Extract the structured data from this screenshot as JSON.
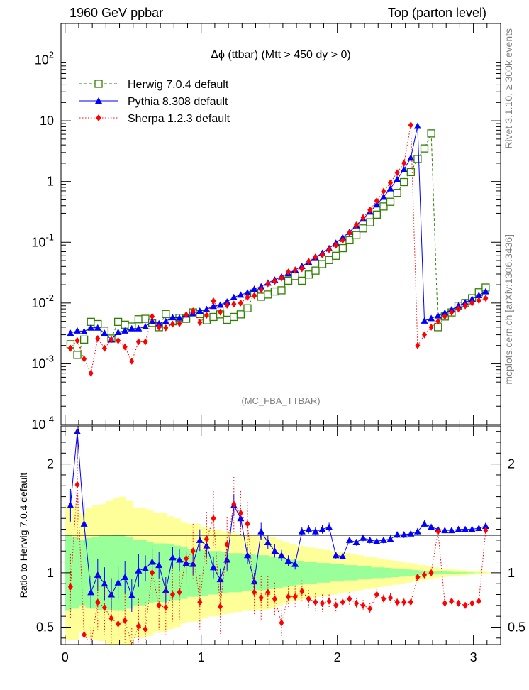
{
  "header": {
    "left": "1960 GeV ppbar",
    "right": "Top (parton level)"
  },
  "side_labels": {
    "rivet": "Rivet 3.1.10, ≥ 300k events",
    "site": "mcplots.cern.ch [arXiv:1306.3436]"
  },
  "analysis_tag": "(MC_FBA_TTBAR)",
  "chart_data": [
    {
      "type": "scatter",
      "title": "Δϕ (ttbar) (Mtt > 450 dy > 0)",
      "yscale": "log",
      "ylim": [
        0.0001,
        400
      ],
      "xlim": [
        -0.03,
        3.2
      ],
      "y_ticks": [
        {
          "value": 100,
          "label": "10^2"
        },
        {
          "value": 10,
          "label": "10"
        },
        {
          "value": 1,
          "label": "1"
        },
        {
          "value": 0.1,
          "label": "10^-1"
        },
        {
          "value": 0.01,
          "label": "10^-2"
        },
        {
          "value": 0.001,
          "label": "10^-3"
        },
        {
          "value": 0.0001,
          "label": "10^-4"
        }
      ],
      "legend_placement": "top-left",
      "series": [
        {
          "name": "Herwig 7.0.4 default",
          "color": "#2f7f00",
          "marker": "open-square",
          "x": [
            0.04,
            0.09,
            0.14,
            0.19,
            0.24,
            0.29,
            0.34,
            0.39,
            0.44,
            0.49,
            0.54,
            0.59,
            0.64,
            0.69,
            0.74,
            0.79,
            0.84,
            0.89,
            0.94,
            0.99,
            1.04,
            1.09,
            1.14,
            1.19,
            1.24,
            1.29,
            1.34,
            1.39,
            1.44,
            1.49,
            1.54,
            1.59,
            1.64,
            1.69,
            1.74,
            1.79,
            1.84,
            1.89,
            1.94,
            1.99,
            2.04,
            2.09,
            2.14,
            2.19,
            2.24,
            2.29,
            2.34,
            2.39,
            2.44,
            2.49,
            2.54,
            2.59,
            2.64,
            2.69,
            2.74,
            2.79,
            2.84,
            2.89,
            2.94,
            2.99,
            3.04,
            3.09
          ],
          "y": [
            0.0021,
            0.0014,
            0.0025,
            0.0049,
            0.0045,
            0.0035,
            0.0026,
            0.0049,
            0.0044,
            0.0041,
            0.0054,
            0.0055,
            0.0047,
            0.004,
            0.0066,
            0.005,
            0.0057,
            0.0055,
            0.007,
            0.0066,
            0.0052,
            0.0059,
            0.0065,
            0.0053,
            0.0059,
            0.0065,
            0.0082,
            0.0145,
            0.0127,
            0.0138,
            0.0155,
            0.0162,
            0.0233,
            0.0278,
            0.0233,
            0.0294,
            0.0342,
            0.0437,
            0.051,
            0.0599,
            0.08,
            0.108,
            0.131,
            0.169,
            0.213,
            0.285,
            0.388,
            0.464,
            0.65,
            0.978,
            1.43,
            2.35,
            3.5,
            6.2,
            0.004,
            0.006,
            0.007,
            0.009,
            0.01,
            0.012,
            0.015,
            0.018
          ]
        },
        {
          "name": "Pythia 8.308 default",
          "color": "#0000ff",
          "marker": "filled-triangle",
          "x": [
            0.04,
            0.09,
            0.14,
            0.19,
            0.24,
            0.29,
            0.34,
            0.39,
            0.44,
            0.49,
            0.54,
            0.59,
            0.64,
            0.69,
            0.74,
            0.79,
            0.84,
            0.89,
            0.94,
            0.99,
            1.04,
            1.09,
            1.14,
            1.19,
            1.24,
            1.29,
            1.34,
            1.39,
            1.44,
            1.49,
            1.54,
            1.59,
            1.64,
            1.69,
            1.74,
            1.79,
            1.84,
            1.89,
            1.94,
            1.99,
            2.04,
            2.09,
            2.14,
            2.19,
            2.24,
            2.29,
            2.34,
            2.39,
            2.44,
            2.49,
            2.54,
            2.59,
            2.64,
            2.69,
            2.74,
            2.79,
            2.84,
            2.89,
            2.94,
            2.99,
            3.04,
            3.09
          ],
          "y": [
            0.0032,
            0.0035,
            0.0034,
            0.0039,
            0.0039,
            0.0032,
            0.0025,
            0.0033,
            0.0035,
            0.0038,
            0.0038,
            0.0041,
            0.005,
            0.0046,
            0.005,
            0.0058,
            0.0057,
            0.0064,
            0.0068,
            0.0074,
            0.0079,
            0.0089,
            0.0093,
            0.0105,
            0.0124,
            0.0136,
            0.0148,
            0.017,
            0.0187,
            0.0215,
            0.0241,
            0.0271,
            0.0305,
            0.0352,
            0.0403,
            0.0473,
            0.0563,
            0.0664,
            0.0796,
            0.0973,
            0.12,
            0.148,
            0.188,
            0.243,
            0.317,
            0.417,
            0.556,
            0.765,
            1.09,
            1.58,
            2.45,
            8.2,
            0.0051,
            0.0056,
            0.0062,
            0.0069,
            0.0078,
            0.009,
            0.0102,
            0.0116,
            0.0134,
            0.0155
          ]
        },
        {
          "name": "Sherpa 1.2.3 default",
          "color": "#ff0000",
          "marker": "filled-diamond",
          "x": [
            0.04,
            0.09,
            0.14,
            0.19,
            0.24,
            0.29,
            0.34,
            0.39,
            0.44,
            0.49,
            0.54,
            0.59,
            0.64,
            0.69,
            0.74,
            0.79,
            0.84,
            0.89,
            0.94,
            0.99,
            1.04,
            1.09,
            1.14,
            1.19,
            1.24,
            1.29,
            1.34,
            1.39,
            1.44,
            1.49,
            1.54,
            1.59,
            1.64,
            1.69,
            1.74,
            1.79,
            1.84,
            1.89,
            1.94,
            1.99,
            2.04,
            2.09,
            2.14,
            2.19,
            2.24,
            2.29,
            2.34,
            2.39,
            2.44,
            2.49,
            2.54,
            2.59,
            2.64,
            2.69,
            2.74,
            2.79,
            2.84,
            2.89,
            2.94,
            2.99,
            3.04,
            3.09
          ],
          "y": [
            0.0018,
            0.0024,
            0.0012,
            0.0007,
            0.0026,
            0.0018,
            0.0025,
            0.0024,
            0.0019,
            0.0011,
            0.0023,
            0.0023,
            0.006,
            0.004,
            0.0039,
            0.0045,
            0.0046,
            0.0064,
            0.0074,
            0.0048,
            0.0063,
            0.0108,
            0.0071,
            0.0092,
            0.0096,
            0.01,
            0.0124,
            0.0132,
            0.0165,
            0.0208,
            0.0227,
            0.0258,
            0.0324,
            0.0347,
            0.0367,
            0.0484,
            0.0572,
            0.0619,
            0.0756,
            0.0893,
            0.108,
            0.143,
            0.192,
            0.255,
            0.34,
            0.48,
            0.69,
            0.95,
            1.4,
            2.0,
            8.5,
            0.002,
            0.003,
            0.004,
            0.005,
            0.006,
            0.007,
            0.008,
            0.009,
            0.01,
            0.011,
            0.012
          ]
        }
      ]
    },
    {
      "type": "scatter",
      "ylabel": "Ratio to Herwig 7.0.4 default",
      "ylim": [
        0.34,
        2.35
      ],
      "xlim": [
        -0.03,
        3.2
      ],
      "y_ticks": [
        {
          "value": 2,
          "label": "2"
        },
        {
          "value": 1,
          "label": "1"
        },
        {
          "value": 0.5,
          "label": "0.5"
        }
      ],
      "x_ticks": [
        {
          "value": 0,
          "label": "0"
        },
        {
          "value": 1,
          "label": "1"
        },
        {
          "value": 2,
          "label": "2"
        },
        {
          "value": 3,
          "label": "3"
        }
      ],
      "band_colors": {
        "outer": "#ffff99",
        "inner": "#99ff99"
      },
      "band_x": [
        0.0,
        0.05,
        0.1,
        0.15,
        0.2,
        0.25,
        0.3,
        0.35,
        0.4,
        0.45,
        0.5,
        0.55,
        0.6,
        0.65,
        0.7,
        0.75,
        0.8,
        0.85,
        0.9,
        0.95,
        1.0,
        1.05,
        1.1,
        1.15,
        1.2,
        1.25,
        1.3,
        1.35,
        1.4,
        1.45,
        1.5,
        1.55,
        1.6,
        1.65,
        1.7,
        1.75,
        1.8,
        1.85,
        1.9,
        1.95,
        2.0,
        2.05,
        2.1,
        2.15,
        2.2,
        2.25,
        2.3,
        2.35,
        2.4,
        2.45,
        2.5,
        2.55,
        2.6,
        2.65,
        2.7,
        2.75,
        2.8,
        2.85,
        2.9,
        2.95,
        3.0,
        3.05,
        3.1,
        3.14
      ],
      "band_outer": [
        0.62,
        0.62,
        0.55,
        0.6,
        0.62,
        0.63,
        0.66,
        0.69,
        0.7,
        0.66,
        0.6,
        0.6,
        0.58,
        0.55,
        0.55,
        0.52,
        0.5,
        0.46,
        0.45,
        0.45,
        0.42,
        0.4,
        0.4,
        0.38,
        0.37,
        0.36,
        0.35,
        0.35,
        0.34,
        0.34,
        0.33,
        0.3,
        0.28,
        0.26,
        0.25,
        0.24,
        0.23,
        0.22,
        0.21,
        0.2,
        0.19,
        0.18,
        0.17,
        0.16,
        0.15,
        0.14,
        0.13,
        0.12,
        0.11,
        0.1,
        0.09,
        0.08,
        0.07,
        0.06,
        0.05,
        0.04,
        0.035,
        0.03,
        0.025,
        0.02,
        0.015,
        0.01,
        0.005,
        0.0
      ],
      "band_inner": [
        0.35,
        0.33,
        0.3,
        0.32,
        0.33,
        0.34,
        0.34,
        0.35,
        0.35,
        0.33,
        0.3,
        0.3,
        0.28,
        0.27,
        0.27,
        0.26,
        0.25,
        0.24,
        0.22,
        0.22,
        0.21,
        0.2,
        0.2,
        0.19,
        0.18,
        0.18,
        0.17,
        0.17,
        0.16,
        0.16,
        0.15,
        0.14,
        0.13,
        0.12,
        0.11,
        0.1,
        0.1,
        0.09,
        0.09,
        0.08,
        0.08,
        0.07,
        0.07,
        0.06,
        0.06,
        0.05,
        0.05,
        0.045,
        0.04,
        0.035,
        0.03,
        0.025,
        0.02,
        0.018,
        0.015,
        0.012,
        0.01,
        0.008,
        0.006,
        0.004,
        0.002,
        0.001,
        0.0005,
        0.0
      ],
      "series": [
        {
          "name": "Pythia 8.308 default",
          "color": "#0000ff",
          "marker": "filled-triangle",
          "x": [
            0.04,
            0.09,
            0.14,
            0.19,
            0.24,
            0.29,
            0.34,
            0.39,
            0.44,
            0.49,
            0.54,
            0.59,
            0.64,
            0.69,
            0.74,
            0.79,
            0.84,
            0.89,
            0.94,
            0.99,
            1.04,
            1.09,
            1.14,
            1.19,
            1.24,
            1.29,
            1.34,
            1.39,
            1.44,
            1.49,
            1.54,
            1.59,
            1.64,
            1.69,
            1.74,
            1.79,
            1.84,
            1.89,
            1.94,
            1.99,
            2.04,
            2.09,
            2.14,
            2.19,
            2.24,
            2.29,
            2.34,
            2.39,
            2.44,
            2.49,
            2.54,
            2.59,
            2.64,
            2.69,
            2.74,
            2.79,
            2.84,
            2.89,
            2.94,
            2.99,
            3.04,
            3.09
          ],
          "y": [
            1.62,
            2.3,
            1.45,
            0.82,
            0.98,
            0.9,
            0.8,
            0.91,
            0.96,
            0.79,
            1.02,
            1.04,
            1.1,
            1.07,
            0.84,
            1.14,
            1.12,
            1.09,
            1.08,
            1.3,
            1.25,
            1.05,
            0.94,
            1.12,
            1.62,
            1.5,
            1.16,
            0.92,
            1.38,
            1.28,
            1.2,
            1.16,
            1.11,
            1.08,
            1.38,
            1.4,
            1.38,
            1.4,
            1.42,
            1.16,
            1.15,
            1.3,
            1.28,
            1.32,
            1.3,
            1.29,
            1.3,
            1.31,
            1.35,
            1.35,
            1.36,
            1.38,
            1.45,
            1.42,
            1.4,
            1.39,
            1.39,
            1.4,
            1.4,
            1.4,
            1.41,
            1.43
          ],
          "yerr": [
            0.15,
            0.25,
            0.2,
            0.15,
            0.15,
            0.15,
            0.15,
            0.15,
            0.15,
            0.15,
            0.15,
            0.12,
            0.12,
            0.12,
            0.12,
            0.1,
            0.1,
            0.1,
            0.1,
            0.1,
            0.1,
            0.1,
            0.1,
            0.1,
            0.1,
            0.08,
            0.08,
            0.08,
            0.08,
            0.06,
            0.06,
            0.05,
            0.05,
            0.05,
            0.04,
            0.04,
            0.04,
            0.04,
            0.04,
            0.03,
            0.03,
            0.03,
            0.03,
            0.03,
            0.03,
            0.03,
            0.03,
            0.03,
            0.03,
            0.03,
            0.03,
            0.03,
            0.03,
            0.02,
            0.02,
            0.02,
            0.02,
            0.02,
            0.02,
            0.02,
            0.02,
            0.02
          ]
        },
        {
          "name": "Sherpa 1.2.3 default",
          "color": "#ff0000",
          "marker": "filled-diamond",
          "x": [
            0.04,
            0.09,
            0.14,
            0.19,
            0.24,
            0.29,
            0.34,
            0.39,
            0.44,
            0.49,
            0.54,
            0.59,
            0.64,
            0.69,
            0.74,
            0.79,
            0.84,
            0.89,
            0.94,
            0.99,
            1.04,
            1.09,
            1.14,
            1.19,
            1.24,
            1.29,
            1.34,
            1.39,
            1.44,
            1.49,
            1.54,
            1.59,
            1.64,
            1.69,
            1.74,
            1.79,
            1.84,
            1.89,
            1.94,
            1.99,
            2.04,
            2.09,
            2.14,
            2.19,
            2.24,
            2.29,
            2.34,
            2.39,
            2.44,
            2.49,
            2.54,
            2.59,
            2.64,
            2.69,
            2.74,
            2.79,
            2.84,
            2.89,
            2.94,
            2.99,
            3.04,
            3.09
          ],
          "y": [
            0.87,
            1.81,
            0.43,
            0.3,
            0.73,
            0.68,
            0.58,
            0.53,
            0.56,
            0.29,
            0.51,
            0.48,
            1.0,
            0.7,
            0.68,
            0.8,
            0.82,
            1.13,
            1.2,
            0.73,
            1.31,
            1.5,
            0.69,
            1.26,
            1.63,
            1.55,
            1.45,
            0.82,
            0.77,
            0.82,
            0.76,
            0.54,
            0.78,
            0.78,
            0.83,
            0.76,
            0.73,
            0.72,
            0.74,
            0.7,
            0.73,
            0.76,
            0.72,
            0.7,
            0.67,
            0.8,
            0.76,
            0.77,
            0.73,
            0.73,
            0.73,
            0.96,
            0.98,
            1.0,
            1.38,
            0.72,
            0.74,
            0.72,
            0.7,
            0.72,
            0.74,
            1.39
          ],
          "yerr": [
            0.3,
            0.5,
            0.3,
            0.2,
            0.25,
            0.25,
            0.25,
            0.25,
            0.25,
            0.2,
            0.25,
            0.25,
            0.25,
            0.25,
            0.25,
            0.25,
            0.25,
            0.25,
            0.25,
            0.25,
            0.25,
            0.25,
            0.25,
            0.25,
            0.25,
            0.2,
            0.2,
            0.2,
            0.2,
            0.15,
            0.15,
            0.12,
            0.1,
            0.1,
            0.1,
            0.08,
            0.08,
            0.08,
            0.06,
            0.06,
            0.06,
            0.06,
            0.05,
            0.05,
            0.05,
            0.05,
            0.04,
            0.04,
            0.04,
            0.04,
            0.04,
            0.03,
            0.03,
            0.03,
            0.03,
            0.03,
            0.03,
            0.03,
            0.03,
            0.03,
            0.03,
            0.03
          ]
        }
      ]
    }
  ]
}
